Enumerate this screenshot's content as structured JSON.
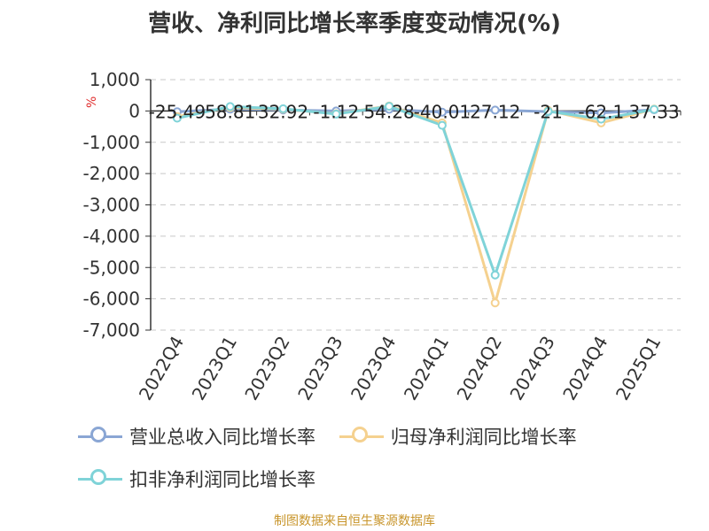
{
  "chart_data": {
    "type": "line",
    "title": "营收、净利同比增长率季度变动情况(%)",
    "unit_label": "%",
    "categories": [
      "2022Q4",
      "2023Q1",
      "2023Q2",
      "2023Q3",
      "2023Q4",
      "2024Q1",
      "2024Q2",
      "2024Q3",
      "2024Q4",
      "2025Q1"
    ],
    "ylim": [
      -7000,
      1000
    ],
    "yticks": [
      1000,
      0,
      -1000,
      -2000,
      -3000,
      -4000,
      -5000,
      -6000,
      -7000
    ],
    "ytick_labels": [
      "1,000",
      "0",
      "-1,000",
      "-2,000",
      "-3,000",
      "-4,000",
      "-5,000",
      "-6,000",
      "-7,000"
    ],
    "series": [
      {
        "name": "营业总收入同比增长率",
        "color": "#8aa6d4",
        "values": [
          -25.49,
          58.81,
          32.92,
          -1.12,
          54.28,
          -40.01,
          27.12,
          -21,
          -62.1,
          37.33
        ]
      },
      {
        "name": "归母净利润同比增长率",
        "color": "#f5d18f",
        "values": [
          -180,
          110,
          60,
          -90,
          160,
          -380,
          -6130,
          20,
          -380,
          60
        ]
      },
      {
        "name": "扣非净利润同比增长率",
        "color": "#7fd3d8",
        "values": [
          -230,
          140,
          70,
          -100,
          150,
          -460,
          -5240,
          -10,
          -260,
          50
        ]
      }
    ],
    "data_labels": [
      "-25.49",
      "58.81",
      "32.92",
      "-1.12",
      "54.28",
      "-40.01",
      "27.12",
      "-21",
      "-62.1",
      "37.33"
    ]
  },
  "footer": "制图数据来自恒生聚源数据库"
}
